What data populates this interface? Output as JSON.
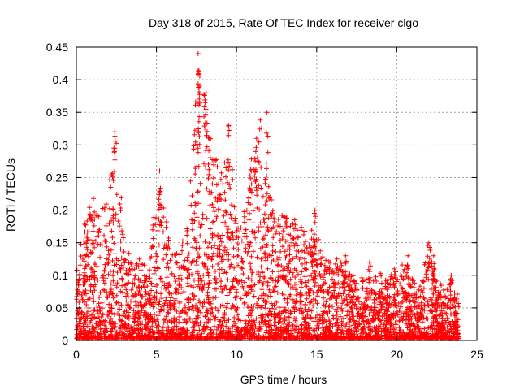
{
  "chart_data": {
    "type": "scatter",
    "title": "Day 318 of 2015, Rate Of TEC Index for receiver clgo",
    "xlabel": "GPS time / hours",
    "ylabel": "ROTI / TECUs",
    "xlim": [
      0,
      25
    ],
    "ylim": [
      0,
      0.45
    ],
    "x_ticks": [
      0,
      5,
      10,
      15,
      20,
      25
    ],
    "y_ticks": [
      0,
      0.05,
      0.1,
      0.15,
      0.2,
      0.25,
      0.3,
      0.35,
      0.4,
      0.45
    ],
    "x_tick_labels": [
      "0",
      "5",
      "10",
      "15",
      "20",
      "25"
    ],
    "y_tick_labels": [
      "0",
      "0.05",
      "0.1",
      "0.15",
      "0.2",
      "0.25",
      "0.3",
      "0.35",
      "0.4",
      "0.45"
    ],
    "grid": true,
    "marker": "plus",
    "color": "#ff0000",
    "x_range_observed": [
      0,
      23.9
    ],
    "envelope_hours": [
      0,
      0.5,
      1,
      1.5,
      2,
      2.5,
      3,
      3.5,
      4,
      4.5,
      5,
      5.5,
      6,
      6.5,
      7,
      7.5,
      8,
      8.5,
      9,
      9.5,
      10,
      10.5,
      11,
      11.5,
      12,
      12.5,
      13,
      13.5,
      14,
      14.5,
      15,
      15.5,
      16,
      16.5,
      17,
      17.5,
      18,
      18.5,
      19,
      19.5,
      20,
      20.5,
      21,
      21.5,
      22,
      22.5,
      23,
      23.5,
      23.9
    ],
    "envelope_upper_roti": [
      0.11,
      0.18,
      0.22,
      0.19,
      0.24,
      0.32,
      0.16,
      0.12,
      0.13,
      0.1,
      0.26,
      0.2,
      0.13,
      0.15,
      0.18,
      0.44,
      0.38,
      0.3,
      0.25,
      0.33,
      0.18,
      0.22,
      0.29,
      0.35,
      0.24,
      0.18,
      0.2,
      0.19,
      0.18,
      0.16,
      0.2,
      0.15,
      0.12,
      0.13,
      0.11,
      0.09,
      0.1,
      0.1,
      0.11,
      0.09,
      0.12,
      0.11,
      0.1,
      0.09,
      0.15,
      0.1,
      0.08,
      0.09,
      0.07
    ],
    "notable_peaks": [
      {
        "x": 2.4,
        "y": 0.32
      },
      {
        "x": 5.2,
        "y": 0.26
      },
      {
        "x": 7.6,
        "y": 0.44
      },
      {
        "x": 7.7,
        "y": 0.39
      },
      {
        "x": 8.1,
        "y": 0.38
      },
      {
        "x": 8.3,
        "y": 0.31
      },
      {
        "x": 9.5,
        "y": 0.33
      },
      {
        "x": 11.2,
        "y": 0.29
      },
      {
        "x": 11.9,
        "y": 0.35
      },
      {
        "x": 14.9,
        "y": 0.2
      },
      {
        "x": 16.8,
        "y": 0.13
      },
      {
        "x": 18.3,
        "y": 0.12
      },
      {
        "x": 20.7,
        "y": 0.13
      },
      {
        "x": 22.0,
        "y": 0.15
      },
      {
        "x": 22.3,
        "y": 0.13
      },
      {
        "x": 23.4,
        "y": 0.1
      }
    ]
  }
}
